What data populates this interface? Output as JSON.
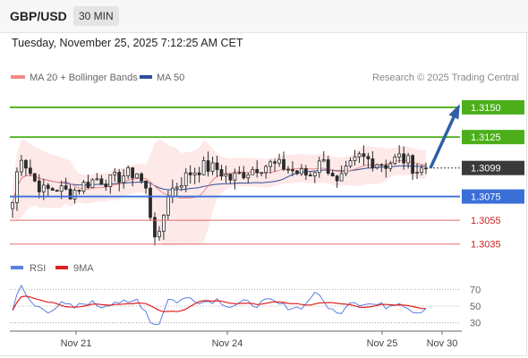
{
  "header": {
    "pair": "GBP/USD",
    "timeframe": "30 MIN"
  },
  "timestamp": "Tuesday, November 25, 2025 7:12:25 AM CET",
  "legend": {
    "ma20_label": "MA 20 + Bollinger Bands",
    "ma50_label": "MA 50",
    "credit": "Research © 2025 Trading Central"
  },
  "rsi_legend": {
    "rsi_label": "RSI",
    "ma_label": "9MA"
  },
  "colors": {
    "resistance": "#4caf1a",
    "pivot": "#3a6fd8",
    "support": "#e86a6a",
    "arrow": "#2f5fa5",
    "ma20": "#f08a8a",
    "ma50": "#2e4f9a",
    "band": "#fde2e2",
    "candle": "#2b2b2b",
    "rsi": "#5b7fe0",
    "rsi_ma": "#e02020"
  },
  "chart_data": {
    "type": "candlestick",
    "x_axis_labels": [
      "Nov 21",
      "Nov 24",
      "Nov 25",
      "Nov 30"
    ],
    "price_ylim": [
      1.3025,
      1.3165
    ],
    "last_price": "1.3099",
    "levels": [
      {
        "value": 1.315,
        "label": "1.3150",
        "type": "resistance"
      },
      {
        "value": 1.3125,
        "label": "1.3125",
        "type": "resistance"
      },
      {
        "value": 1.3075,
        "label": "1.3075",
        "type": "pivot"
      },
      {
        "value": 1.3055,
        "label": "1.3055",
        "type": "support"
      },
      {
        "value": 1.3035,
        "label": "1.3035",
        "type": "support"
      }
    ],
    "rsi_ticks": [
      "70",
      "50",
      "30"
    ],
    "rsi_ylim": [
      20,
      80
    ],
    "candle_count": 94,
    "price_anchors": [
      [
        0,
        1.307
      ],
      [
        1,
        1.3095
      ],
      [
        2,
        1.311
      ],
      [
        3,
        1.3102
      ],
      [
        5,
        1.3088
      ],
      [
        7,
        1.308
      ],
      [
        10,
        1.3082
      ],
      [
        13,
        1.3078
      ],
      [
        16,
        1.3085
      ],
      [
        19,
        1.309
      ],
      [
        22,
        1.3088
      ],
      [
        25,
        1.3093
      ],
      [
        28,
        1.3095
      ],
      [
        30,
        1.308
      ],
      [
        31,
        1.306
      ],
      [
        32,
        1.3045
      ],
      [
        33,
        1.304
      ],
      [
        34,
        1.306
      ],
      [
        35,
        1.3078
      ],
      [
        37,
        1.3085
      ],
      [
        40,
        1.3095
      ],
      [
        43,
        1.31
      ],
      [
        46,
        1.3098
      ],
      [
        49,
        1.309
      ],
      [
        52,
        1.3095
      ],
      [
        55,
        1.31
      ],
      [
        58,
        1.3102
      ],
      [
        61,
        1.31
      ],
      [
        64,
        1.3095
      ],
      [
        67,
        1.3093
      ],
      [
        68,
        1.3098
      ],
      [
        69,
        1.3108
      ],
      [
        70,
        1.3103
      ],
      [
        72,
        1.3095
      ],
      [
        73,
        1.3085
      ],
      [
        74,
        1.309
      ],
      [
        76,
        1.31
      ],
      [
        78,
        1.3108
      ],
      [
        81,
        1.3105
      ],
      [
        84,
        1.3102
      ],
      [
        87,
        1.3108
      ],
      [
        89,
        1.3104
      ],
      [
        91,
        1.3097
      ],
      [
        93,
        1.3099
      ]
    ],
    "rsi_anchors": [
      [
        0,
        48
      ],
      [
        1,
        65
      ],
      [
        2,
        72
      ],
      [
        3,
        62
      ],
      [
        5,
        50
      ],
      [
        8,
        45
      ],
      [
        11,
        52
      ],
      [
        14,
        48
      ],
      [
        17,
        55
      ],
      [
        20,
        50
      ],
      [
        23,
        56
      ],
      [
        26,
        52
      ],
      [
        28,
        58
      ],
      [
        30,
        44
      ],
      [
        31,
        33
      ],
      [
        32,
        28
      ],
      [
        33,
        30
      ],
      [
        34,
        45
      ],
      [
        35,
        58
      ],
      [
        37,
        56
      ],
      [
        40,
        60
      ],
      [
        43,
        55
      ],
      [
        46,
        58
      ],
      [
        49,
        50
      ],
      [
        52,
        54
      ],
      [
        55,
        52
      ],
      [
        58,
        56
      ],
      [
        61,
        50
      ],
      [
        64,
        48
      ],
      [
        66,
        52
      ],
      [
        68,
        68
      ],
      [
        69,
        60
      ],
      [
        71,
        50
      ],
      [
        73,
        40
      ],
      [
        74,
        45
      ],
      [
        76,
        57
      ],
      [
        78,
        54
      ],
      [
        81,
        52
      ],
      [
        84,
        50
      ],
      [
        87,
        56
      ],
      [
        89,
        48
      ],
      [
        91,
        43
      ],
      [
        93,
        48
      ]
    ],
    "forecast_arrow": {
      "from_price": 1.3099,
      "to_price": 1.315
    }
  }
}
